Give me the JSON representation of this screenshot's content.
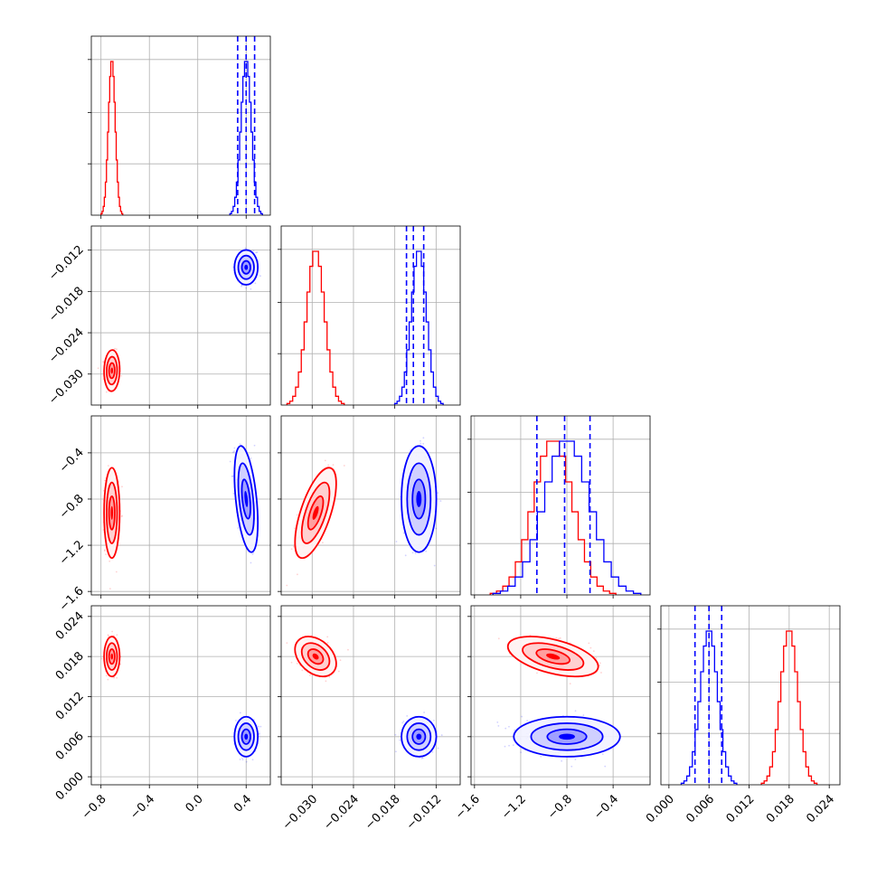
{
  "chart_data": {
    "type": "corner",
    "parameters": [
      {
        "ticks": [
          -0.8,
          -0.4,
          0.0,
          0.4
        ],
        "tick_labels": [
          "−0.8",
          "−0.4",
          "0.0",
          "0.4"
        ],
        "range": [
          -0.88,
          0.6
        ]
      },
      {
        "ticks": [
          -0.03,
          -0.024,
          -0.018,
          -0.012
        ],
        "tick_labels": [
          "−0.030",
          "−0.024",
          "−0.018",
          "−0.012"
        ],
        "range": [
          -0.0345,
          -0.0085
        ]
      },
      {
        "ticks": [
          -1.6,
          -1.2,
          -0.8,
          -0.4
        ],
        "tick_labels": [
          "−1.6",
          "−1.2",
          "−0.8",
          "−0.4"
        ],
        "range": [
          -1.63,
          -0.08
        ]
      },
      {
        "ticks": [
          0.0,
          0.006,
          0.012,
          0.018,
          0.024
        ],
        "tick_labels": [
          "0.000",
          "0.006",
          "0.012",
          "0.018",
          "0.024"
        ],
        "range": [
          -0.0012,
          0.0256
        ]
      }
    ],
    "series": [
      {
        "color": "#ff0000",
        "mean": [
          -0.71,
          -0.0295,
          -0.92,
          0.018
        ],
        "sd": [
          0.028,
          0.0013,
          0.17,
          0.0013
        ],
        "corr": [
          [
            0,
            1,
            0.05
          ],
          [
            0,
            2,
            0.0
          ],
          [
            1,
            2,
            0.65
          ],
          [
            1,
            3,
            -0.35
          ],
          [
            2,
            3,
            -0.5
          ],
          [
            0,
            3,
            0.0
          ]
        ]
      },
      {
        "color": "#0000ff",
        "mean": [
          0.4,
          -0.0145,
          -0.8,
          0.006
        ],
        "sd": [
          0.042,
          0.0011,
          0.2,
          0.0013
        ],
        "corr": [
          [
            0,
            1,
            0.0
          ],
          [
            0,
            2,
            -0.45
          ],
          [
            1,
            2,
            0.0
          ],
          [
            1,
            3,
            0.0
          ],
          [
            2,
            3,
            0.0
          ],
          [
            0,
            3,
            0.0
          ]
        ]
      }
    ],
    "quantiles": [
      [
        0.33,
        0.4,
        0.47
      ],
      [
        -0.0163,
        -0.0153,
        -0.0138
      ],
      [
        -1.06,
        -0.82,
        -0.6
      ],
      [
        0.0039,
        0.006,
        0.0079
      ]
    ],
    "hist_ylim": 1.15,
    "grid": true,
    "legend": "none"
  }
}
